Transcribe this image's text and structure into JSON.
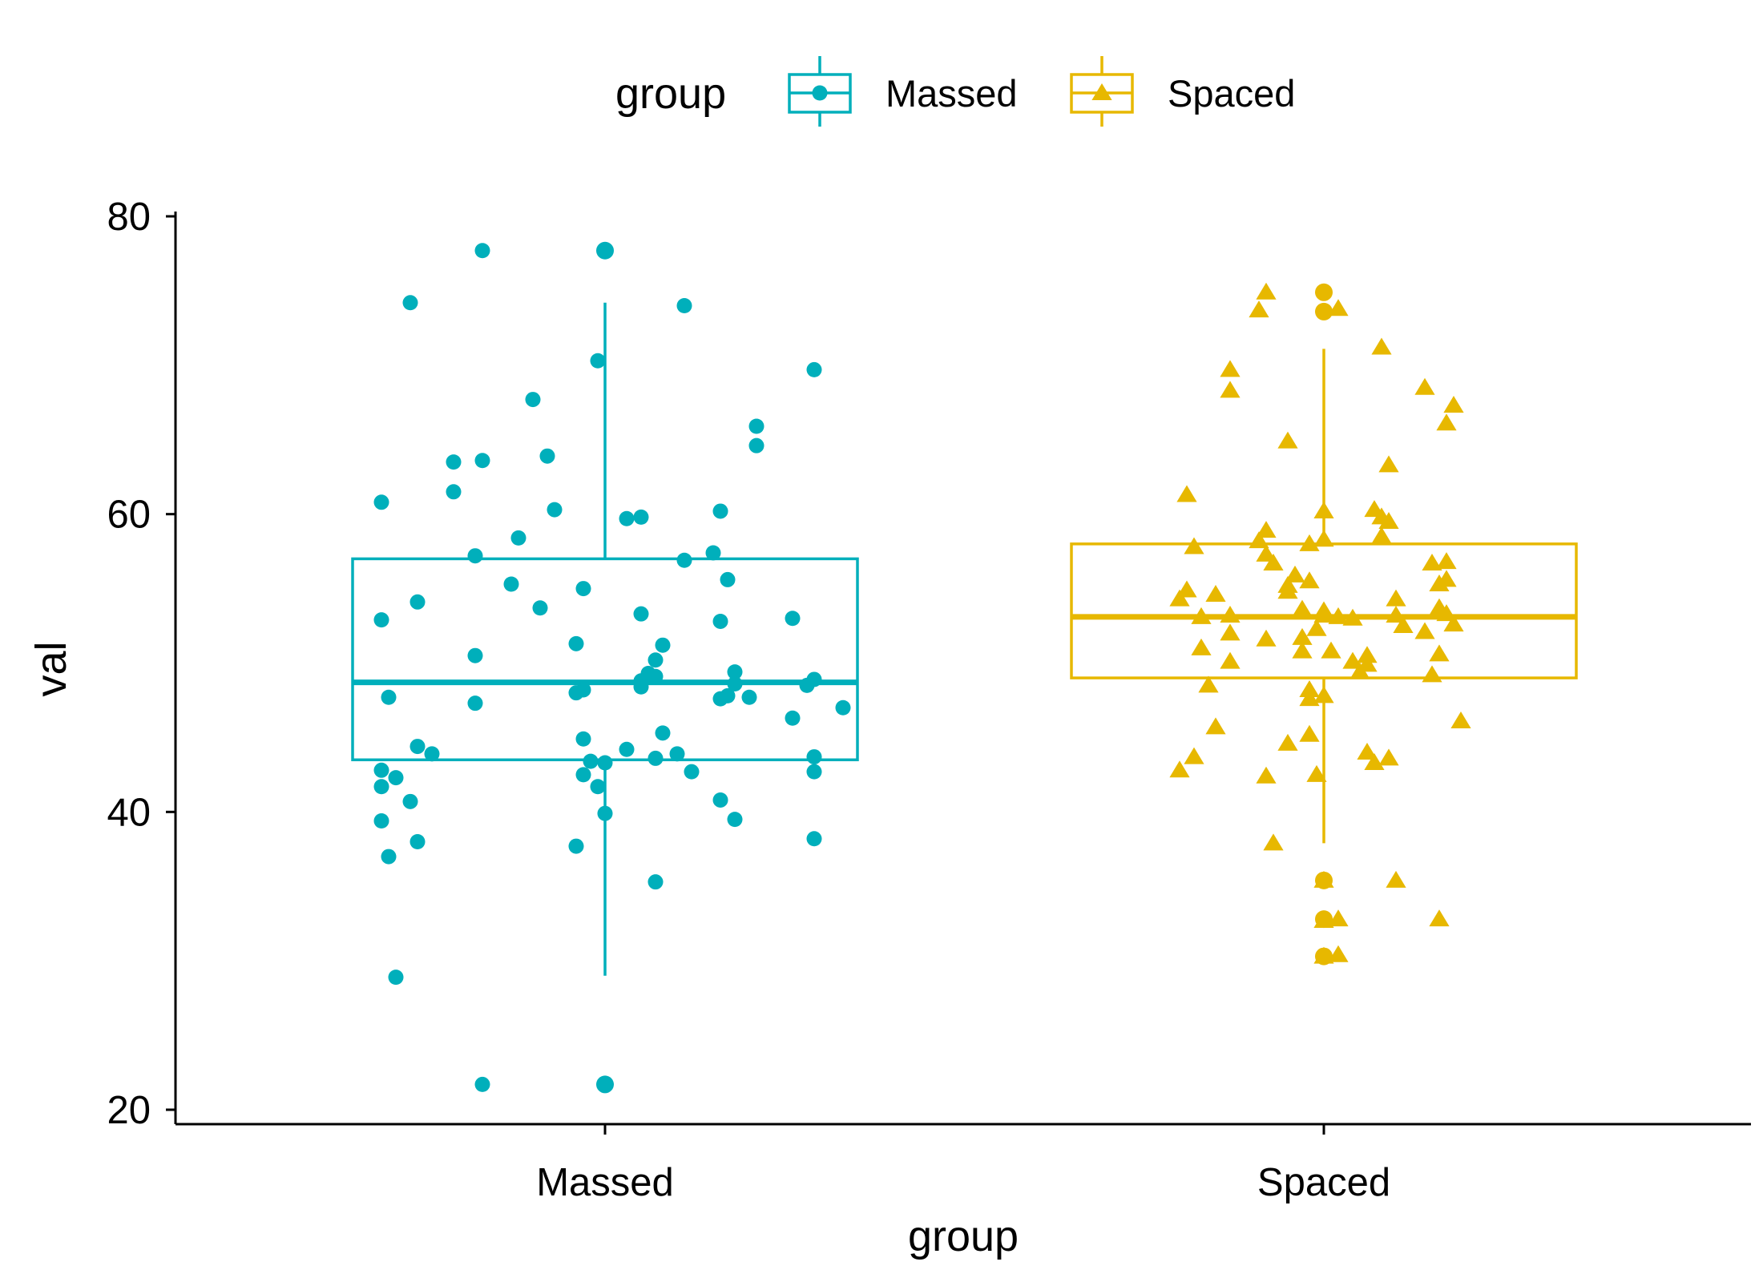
{
  "chart_data": {
    "type": "box",
    "xlabel": "group",
    "ylabel": "val",
    "categories": [
      "Massed",
      "Spaced"
    ],
    "ylim": [
      19,
      80
    ],
    "yticks": [
      20,
      40,
      60,
      80
    ],
    "grid": false,
    "legend": {
      "title": "group",
      "position": "top",
      "entries": [
        {
          "label": "Massed",
          "color": "#00AFBB",
          "marker": "circle"
        },
        {
          "label": "Spaced",
          "color": "#E7B800",
          "marker": "triangle"
        }
      ]
    },
    "series": [
      {
        "name": "Massed",
        "color": "#00AFBB",
        "marker": "circle",
        "box": {
          "whisker_low": 29,
          "q1": 43.5,
          "median": 48.7,
          "q3": 57,
          "whisker_high": 74.2
        },
        "outliers": [
          77.7,
          21.7
        ],
        "points": [
          {
            "x": -0.17,
            "y": 77.7
          },
          {
            "x": 0.0,
            "y": 77.7
          },
          {
            "x": -0.27,
            "y": 74.2
          },
          {
            "x": 0.11,
            "y": 74.0
          },
          {
            "x": -0.01,
            "y": 70.3
          },
          {
            "x": 0.29,
            "y": 69.7
          },
          {
            "x": -0.1,
            "y": 67.7
          },
          {
            "x": 0.21,
            "y": 65.9
          },
          {
            "x": 0.21,
            "y": 64.6
          },
          {
            "x": -0.08,
            "y": 63.9
          },
          {
            "x": -0.21,
            "y": 63.5
          },
          {
            "x": -0.17,
            "y": 63.6
          },
          {
            "x": -0.21,
            "y": 61.5
          },
          {
            "x": -0.31,
            "y": 60.8
          },
          {
            "x": -0.07,
            "y": 60.3
          },
          {
            "x": 0.16,
            "y": 60.2
          },
          {
            "x": 0.03,
            "y": 59.7
          },
          {
            "x": 0.05,
            "y": 59.8
          },
          {
            "x": -0.12,
            "y": 58.4
          },
          {
            "x": 0.15,
            "y": 57.4
          },
          {
            "x": -0.18,
            "y": 57.2
          },
          {
            "x": 0.11,
            "y": 56.9
          },
          {
            "x": 0.17,
            "y": 55.6
          },
          {
            "x": -0.13,
            "y": 55.3
          },
          {
            "x": -0.03,
            "y": 55.0
          },
          {
            "x": -0.26,
            "y": 54.1
          },
          {
            "x": -0.09,
            "y": 53.7
          },
          {
            "x": 0.05,
            "y": 53.3
          },
          {
            "x": 0.26,
            "y": 53.0
          },
          {
            "x": -0.31,
            "y": 52.9
          },
          {
            "x": 0.16,
            "y": 52.8
          },
          {
            "x": 0.08,
            "y": 51.2
          },
          {
            "x": -0.04,
            "y": 51.3
          },
          {
            "x": -0.18,
            "y": 50.5
          },
          {
            "x": 0.07,
            "y": 50.2
          },
          {
            "x": 0.18,
            "y": 49.4
          },
          {
            "x": 0.06,
            "y": 49.3
          },
          {
            "x": 0.07,
            "y": 49.1
          },
          {
            "x": 0.05,
            "y": 48.8
          },
          {
            "x": 0.18,
            "y": 48.6
          },
          {
            "x": 0.29,
            "y": 48.9
          },
          {
            "x": 0.28,
            "y": 48.5
          },
          {
            "x": -0.03,
            "y": 48.2
          },
          {
            "x": -0.04,
            "y": 48.0
          },
          {
            "x": 0.05,
            "y": 48.4
          },
          {
            "x": 0.17,
            "y": 47.8
          },
          {
            "x": 0.16,
            "y": 47.6
          },
          {
            "x": -0.18,
            "y": 47.3
          },
          {
            "x": -0.3,
            "y": 47.7
          },
          {
            "x": 0.2,
            "y": 47.7
          },
          {
            "x": 0.33,
            "y": 47.0
          },
          {
            "x": 0.26,
            "y": 46.3
          },
          {
            "x": 0.08,
            "y": 45.3
          },
          {
            "x": -0.03,
            "y": 44.9
          },
          {
            "x": -0.26,
            "y": 44.4
          },
          {
            "x": 0.03,
            "y": 44.2
          },
          {
            "x": -0.24,
            "y": 43.9
          },
          {
            "x": 0.1,
            "y": 43.9
          },
          {
            "x": 0.07,
            "y": 43.6
          },
          {
            "x": -0.02,
            "y": 43.4
          },
          {
            "x": 0.0,
            "y": 43.3
          },
          {
            "x": 0.29,
            "y": 43.7
          },
          {
            "x": -0.31,
            "y": 42.8
          },
          {
            "x": 0.12,
            "y": 42.7
          },
          {
            "x": 0.29,
            "y": 42.7
          },
          {
            "x": -0.03,
            "y": 42.5
          },
          {
            "x": -0.29,
            "y": 42.3
          },
          {
            "x": -0.31,
            "y": 41.7
          },
          {
            "x": -0.01,
            "y": 41.7
          },
          {
            "x": -0.27,
            "y": 40.7
          },
          {
            "x": 0.16,
            "y": 40.8
          },
          {
            "x": 0.0,
            "y": 39.9
          },
          {
            "x": -0.31,
            "y": 39.4
          },
          {
            "x": 0.18,
            "y": 39.5
          },
          {
            "x": -0.26,
            "y": 38.0
          },
          {
            "x": 0.29,
            "y": 38.2
          },
          {
            "x": -0.04,
            "y": 37.7
          },
          {
            "x": -0.3,
            "y": 37.0
          },
          {
            "x": 0.07,
            "y": 35.3
          },
          {
            "x": -0.29,
            "y": 28.9
          },
          {
            "x": -0.17,
            "y": 21.7
          },
          {
            "x": 0.0,
            "y": 21.7
          }
        ]
      },
      {
        "name": "Spaced",
        "color": "#E7B800",
        "marker": "triangle",
        "box": {
          "whisker_low": 37.9,
          "q1": 49,
          "median": 53.1,
          "q3": 58,
          "whisker_high": 71.1
        },
        "outliers": [
          74.9,
          73.6,
          35.4,
          32.8,
          30.3
        ],
        "points": [
          {
            "x": -0.08,
            "y": 74.9
          },
          {
            "x": -0.09,
            "y": 73.7
          },
          {
            "x": 0.02,
            "y": 73.8
          },
          {
            "x": 0.08,
            "y": 71.2
          },
          {
            "x": -0.13,
            "y": 69.7
          },
          {
            "x": 0.14,
            "y": 68.5
          },
          {
            "x": -0.13,
            "y": 68.3
          },
          {
            "x": 0.18,
            "y": 67.3
          },
          {
            "x": 0.17,
            "y": 66.1
          },
          {
            "x": -0.05,
            "y": 64.9
          },
          {
            "x": 0.09,
            "y": 63.3
          },
          {
            "x": -0.19,
            "y": 61.3
          },
          {
            "x": 0.07,
            "y": 60.3
          },
          {
            "x": 0.0,
            "y": 60.2
          },
          {
            "x": 0.08,
            "y": 59.8
          },
          {
            "x": 0.09,
            "y": 59.5
          },
          {
            "x": -0.08,
            "y": 58.9
          },
          {
            "x": -0.09,
            "y": 58.2
          },
          {
            "x": 0.08,
            "y": 58.5
          },
          {
            "x": 0.0,
            "y": 58.3
          },
          {
            "x": -0.02,
            "y": 58.0
          },
          {
            "x": -0.18,
            "y": 57.8
          },
          {
            "x": -0.08,
            "y": 57.3
          },
          {
            "x": 0.17,
            "y": 56.8
          },
          {
            "x": 0.15,
            "y": 56.7
          },
          {
            "x": -0.07,
            "y": 56.7
          },
          {
            "x": -0.04,
            "y": 55.9
          },
          {
            "x": -0.02,
            "y": 55.5
          },
          {
            "x": 0.17,
            "y": 55.6
          },
          {
            "x": -0.05,
            "y": 55.2
          },
          {
            "x": 0.16,
            "y": 55.3
          },
          {
            "x": -0.05,
            "y": 54.8
          },
          {
            "x": -0.19,
            "y": 54.9
          },
          {
            "x": -0.15,
            "y": 54.6
          },
          {
            "x": 0.1,
            "y": 54.3
          },
          {
            "x": -0.2,
            "y": 54.3
          },
          {
            "x": 0.16,
            "y": 53.7
          },
          {
            "x": -0.03,
            "y": 53.6
          },
          {
            "x": 0.0,
            "y": 53.5
          },
          {
            "x": 0.0,
            "y": 53.2
          },
          {
            "x": -0.13,
            "y": 53.2
          },
          {
            "x": 0.17,
            "y": 53.3
          },
          {
            "x": -0.17,
            "y": 53.1
          },
          {
            "x": 0.02,
            "y": 53.1
          },
          {
            "x": 0.04,
            "y": 53.0
          },
          {
            "x": 0.1,
            "y": 53.2
          },
          {
            "x": 0.18,
            "y": 52.6
          },
          {
            "x": -0.01,
            "y": 52.3
          },
          {
            "x": 0.11,
            "y": 52.5
          },
          {
            "x": 0.14,
            "y": 52.1
          },
          {
            "x": -0.13,
            "y": 52.0
          },
          {
            "x": -0.03,
            "y": 51.7
          },
          {
            "x": -0.08,
            "y": 51.6
          },
          {
            "x": -0.17,
            "y": 51.0
          },
          {
            "x": -0.03,
            "y": 50.8
          },
          {
            "x": 0.01,
            "y": 50.8
          },
          {
            "x": 0.06,
            "y": 50.5
          },
          {
            "x": 0.16,
            "y": 50.6
          },
          {
            "x": -0.13,
            "y": 50.1
          },
          {
            "x": 0.04,
            "y": 50.1
          },
          {
            "x": 0.06,
            "y": 49.9
          },
          {
            "x": 0.05,
            "y": 49.4
          },
          {
            "x": 0.15,
            "y": 49.2
          },
          {
            "x": -0.16,
            "y": 48.5
          },
          {
            "x": -0.02,
            "y": 48.2
          },
          {
            "x": -0.02,
            "y": 47.6
          },
          {
            "x": 0.0,
            "y": 47.8
          },
          {
            "x": 0.19,
            "y": 46.1
          },
          {
            "x": -0.15,
            "y": 45.7
          },
          {
            "x": -0.02,
            "y": 45.2
          },
          {
            "x": -0.05,
            "y": 44.6
          },
          {
            "x": 0.06,
            "y": 44.0
          },
          {
            "x": 0.09,
            "y": 43.6
          },
          {
            "x": 0.07,
            "y": 43.3
          },
          {
            "x": -0.18,
            "y": 43.7
          },
          {
            "x": -0.2,
            "y": 42.8
          },
          {
            "x": -0.08,
            "y": 42.4
          },
          {
            "x": -0.01,
            "y": 42.5
          },
          {
            "x": -0.07,
            "y": 37.9
          },
          {
            "x": 0.1,
            "y": 35.4
          },
          {
            "x": 0.0,
            "y": 35.4
          },
          {
            "x": 0.02,
            "y": 32.8
          },
          {
            "x": 0.0,
            "y": 32.7
          },
          {
            "x": 0.16,
            "y": 32.8
          },
          {
            "x": 0.02,
            "y": 30.4
          },
          {
            "x": 0.0,
            "y": 30.3
          }
        ]
      }
    ]
  }
}
